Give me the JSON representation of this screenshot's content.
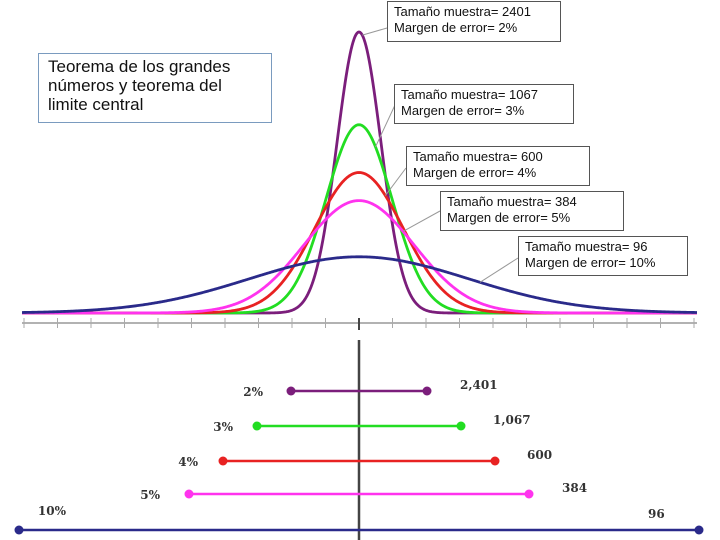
{
  "title": "Teorema  de los grandes números y teorema del limite central",
  "colors": {
    "2%": "#7b1e7b",
    "3%": "#22dd22",
    "4%": "#e82222",
    "5%": "#ff33ee",
    "10%": "#2a2a8a",
    "axis": "#444444"
  },
  "chart_data": [
    {
      "type": "line",
      "description_of_series": "normal density curves",
      "series": [
        {
          "name": "Tamaño muestra= 2401\nMargen de error= 2%",
          "sample_size": 2401,
          "margin_pct": 2,
          "color": "#7b1e7b",
          "relative_peak": 1.0
        },
        {
          "name": "Tamaño muestra= 1067\nMargen de error= 3%",
          "sample_size": 1067,
          "margin_pct": 3,
          "color": "#22dd22",
          "relative_peak": 0.67
        },
        {
          "name": "Tamaño muestra= 600\nMargen de error= 4%",
          "sample_size": 600,
          "margin_pct": 4,
          "color": "#e82222",
          "relative_peak": 0.5
        },
        {
          "name": "Tamaño muestra= 384\nMargen de error= 5%",
          "sample_size": 384,
          "margin_pct": 5,
          "color": "#ff33ee",
          "relative_peak": 0.4
        },
        {
          "name": "Tamaño muestra= 96\nMargen de error= 10%",
          "sample_size": 96,
          "margin_pct": 10,
          "color": "#2a2a8a",
          "relative_peak": 0.2
        }
      ],
      "annotations": [
        {
          "line1": "Tamaño muestra= 2401",
          "line2": "Margen de error= 2%"
        },
        {
          "line1": "Tamaño muestra= 1067",
          "line2": "Margen de error= 3%"
        },
        {
          "line1": "Tamaño muestra= 600",
          "line2": "Margen de error= 4%"
        },
        {
          "line1": "Tamaño muestra= 384",
          "line2": "Margen de error= 5%"
        },
        {
          "line1": "Tamaño muestra= 96",
          "line2": "Margen de error= 10%"
        }
      ]
    },
    {
      "type": "interval",
      "intervals": [
        {
          "margin_label": "2%",
          "size_label": "2,401",
          "margin": 2,
          "color": "#7b1e7b"
        },
        {
          "margin_label": "3%",
          "size_label": "1,067",
          "margin": 3,
          "color": "#22dd22"
        },
        {
          "margin_label": "4%",
          "size_label": "600",
          "margin": 4,
          "color": "#e82222"
        },
        {
          "margin_label": "5%",
          "size_label": "384",
          "margin": 5,
          "color": "#ff33ee"
        },
        {
          "margin_label": "10%",
          "size_label": "96",
          "margin": 10,
          "color": "#2a2a8a"
        }
      ]
    }
  ]
}
